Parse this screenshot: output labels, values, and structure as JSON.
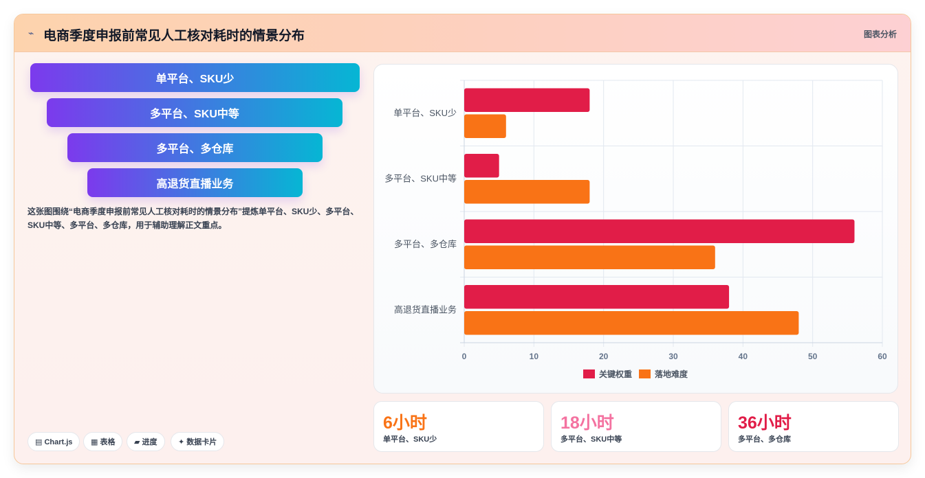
{
  "header": {
    "icon": "chart-line-icon",
    "title": "电商季度申报前常见人工核对耗时的情景分布",
    "tag": "图表分析"
  },
  "funnel": [
    "单平台、SKU少",
    "多平台、SKU中等",
    "多平台、多仓库",
    "高退货直播业务"
  ],
  "description": "这张图围绕“电商季度申报前常见人工核对耗时的情景分布”提炼单平台、SKU少、多平台、SKU中等、多平台、多仓库，用于辅助理解正文重点。",
  "chips": [
    {
      "icon": "chart-icon",
      "label": "▤ Chart.js"
    },
    {
      "icon": "table-icon",
      "label": "▦ 表格"
    },
    {
      "icon": "progress-icon",
      "label": "▰ 进度"
    },
    {
      "icon": "sparkle-icon",
      "label": "✦ 数据卡片"
    }
  ],
  "chart_data": {
    "type": "bar",
    "orientation": "horizontal",
    "categories": [
      "单平台、SKU少",
      "多平台、SKU中等",
      "多平台、多仓库",
      "高退货直播业务"
    ],
    "series": [
      {
        "name": "关键权重",
        "values": [
          18,
          5,
          56,
          38
        ],
        "color": "#e11d48"
      },
      {
        "name": "落地难度",
        "values": [
          6,
          18,
          36,
          48
        ],
        "color": "#f97316"
      }
    ],
    "xlim": [
      0,
      60
    ],
    "xticks": [
      0,
      10,
      20,
      30,
      40,
      50,
      60
    ],
    "grid": true,
    "legend": "bottom"
  },
  "stats": [
    {
      "value": "6小时",
      "label": "单平台、SKU少",
      "color": "#f97316"
    },
    {
      "value": "18小时",
      "label": "多平台、SKU中等",
      "color": "#f472a0"
    },
    {
      "value": "36小时",
      "label": "多平台、多仓库",
      "color": "#e11d48"
    }
  ]
}
